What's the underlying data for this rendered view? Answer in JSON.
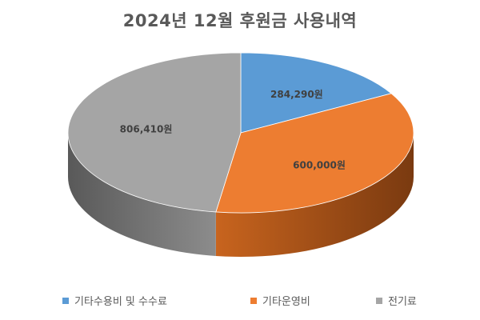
{
  "chart_data": {
    "type": "pie",
    "title": "2024년 12월 후원금 사용내역",
    "slices": [
      {
        "name": "기타수용비 및 수수료",
        "value": 284290,
        "label": "284,290원",
        "color": "#5B9BD5"
      },
      {
        "name": "기타운영비",
        "value": 600000,
        "label": "600,000원",
        "color": "#ED7D31"
      },
      {
        "name": "전기료",
        "value": 806410,
        "label": "806,410원",
        "color": "#A5A5A5"
      }
    ],
    "legend_position": "bottom",
    "style": "3d"
  }
}
